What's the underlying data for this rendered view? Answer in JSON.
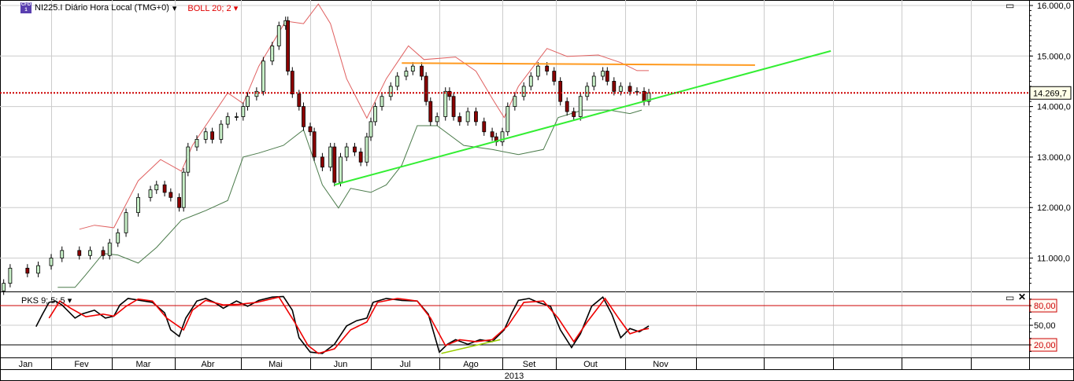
{
  "header": {
    "symbol_icon": "cfd-icon",
    "symbol_label": "NI225.I Diário Hora Local (TMG+0)",
    "indicator_label": "BOLL 20; 2",
    "stoch_label": "PKS 9; 5; 5"
  },
  "colors": {
    "up": "#c8f0c8",
    "down": "#8b0000",
    "boll_upper": "#e06060",
    "boll_lower": "#4a7a4a",
    "trend_support": "#33ee33",
    "trend_resistance": "#ff9a1f",
    "last_price": "#cc0000",
    "stoch_k": "#000000",
    "stoch_d": "#ee0000"
  },
  "chart_data": [
    {
      "type": "candlestick",
      "year": "2013",
      "x_ticks": [
        "Jan",
        "Fev",
        "Mar",
        "Abr",
        "Mai",
        "Jun",
        "Jul",
        "Ago",
        "Set",
        "Out",
        "Nov",
        "",
        "",
        "",
        "",
        ""
      ],
      "y_ticks": [
        "16.000,0",
        "15.000,0",
        "14.000,0",
        "13.000,0",
        "12.000,0",
        "11.000,0"
      ],
      "y_tick_values": [
        16000,
        15000,
        14000,
        13000,
        12000,
        11000
      ],
      "ylim": [
        10400,
        16100
      ],
      "grid": true,
      "last_price": 14269.7,
      "last_price_label": "14.269,7",
      "close": [
        [
          "2013-01-10",
          10500
        ],
        [
          "2013-01-13",
          10800
        ],
        [
          "2013-01-21",
          10700
        ],
        [
          "2013-01-26",
          10850
        ],
        [
          "2013-02-01",
          11000
        ],
        [
          "2013-02-06",
          11150
        ],
        [
          "2013-02-14",
          11050
        ],
        [
          "2013-02-19",
          11150
        ],
        [
          "2013-02-25",
          11050
        ],
        [
          "2013-02-28",
          11300
        ],
        [
          "2013-03-04",
          11500
        ],
        [
          "2013-03-08",
          11900
        ],
        [
          "2013-03-14",
          12200
        ],
        [
          "2013-03-20",
          12350
        ],
        [
          "2013-03-23",
          12450
        ],
        [
          "2013-03-27",
          12300
        ],
        [
          "2013-03-30",
          12200
        ],
        [
          "2013-04-03",
          12000
        ],
        [
          "2013-04-05",
          12700
        ],
        [
          "2013-04-07",
          13200
        ],
        [
          "2013-04-11",
          13350
        ],
        [
          "2013-04-15",
          13500
        ],
        [
          "2013-04-18",
          13350
        ],
        [
          "2013-04-22",
          13650
        ],
        [
          "2013-04-25",
          13800
        ],
        [
          "2013-04-29",
          13800
        ],
        [
          "2013-05-02",
          14000
        ],
        [
          "2013-05-04",
          14200
        ],
        [
          "2013-05-08",
          14300
        ],
        [
          "2013-05-11",
          14900
        ],
        [
          "2013-05-15",
          15200
        ],
        [
          "2013-05-18",
          15600
        ],
        [
          "2013-05-21",
          15700
        ],
        [
          "2013-05-22",
          14700
        ],
        [
          "2013-05-24",
          14250
        ],
        [
          "2013-05-27",
          14000
        ],
        [
          "2013-05-29",
          13600
        ],
        [
          "2013-06-01",
          13500
        ],
        [
          "2013-06-03",
          13000
        ],
        [
          "2013-06-07",
          12800
        ],
        [
          "2013-06-11",
          13200
        ],
        [
          "2013-06-13",
          12500
        ],
        [
          "2013-06-16",
          13000
        ],
        [
          "2013-06-19",
          13200
        ],
        [
          "2013-06-23",
          13100
        ],
        [
          "2013-06-26",
          12900
        ],
        [
          "2013-06-29",
          13400
        ],
        [
          "2013-07-01",
          13700
        ],
        [
          "2013-07-03",
          14000
        ],
        [
          "2013-07-06",
          14200
        ],
        [
          "2013-07-10",
          14400
        ],
        [
          "2013-07-13",
          14600
        ],
        [
          "2013-07-17",
          14700
        ],
        [
          "2013-07-20",
          14800
        ],
        [
          "2013-07-24",
          14600
        ],
        [
          "2013-07-26",
          14100
        ],
        [
          "2013-07-28",
          13700
        ],
        [
          "2013-07-31",
          13800
        ],
        [
          "2013-08-04",
          14300
        ],
        [
          "2013-08-06",
          14200
        ],
        [
          "2013-08-08",
          13800
        ],
        [
          "2013-08-11",
          13700
        ],
        [
          "2013-08-15",
          13900
        ],
        [
          "2013-08-19",
          13700
        ],
        [
          "2013-08-23",
          13500
        ],
        [
          "2013-08-27",
          13400
        ],
        [
          "2013-08-29",
          13300
        ],
        [
          "2013-09-01",
          13500
        ],
        [
          "2013-09-04",
          14000
        ],
        [
          "2013-09-08",
          14200
        ],
        [
          "2013-09-13",
          14400
        ],
        [
          "2013-09-17",
          14600
        ],
        [
          "2013-09-21",
          14800
        ],
        [
          "2013-09-26",
          14700
        ],
        [
          "2013-09-30",
          14500
        ],
        [
          "2013-10-03",
          14100
        ],
        [
          "2013-10-06",
          13900
        ],
        [
          "2013-10-09",
          13800
        ],
        [
          "2013-10-12",
          14200
        ],
        [
          "2013-10-15",
          14400
        ],
        [
          "2013-10-18",
          14600
        ],
        [
          "2013-10-22",
          14700
        ],
        [
          "2013-10-24",
          14500
        ],
        [
          "2013-10-27",
          14300
        ],
        [
          "2013-10-30",
          14400
        ],
        [
          "2013-11-03",
          14300
        ],
        [
          "2013-11-06",
          14300
        ],
        [
          "2013-11-09",
          14100
        ],
        [
          "2013-11-11",
          14269.7
        ]
      ],
      "bollinger_upper": [
        [
          "2013-02-14",
          11570
        ],
        [
          "2013-02-21",
          11650
        ],
        [
          "2013-03-02",
          11600
        ],
        [
          "2013-03-14",
          12530
        ],
        [
          "2013-03-25",
          12950
        ],
        [
          "2013-04-04",
          12720
        ],
        [
          "2013-04-09",
          13230
        ],
        [
          "2013-04-25",
          14270
        ],
        [
          "2013-05-02",
          14060
        ],
        [
          "2013-05-09",
          14800
        ],
        [
          "2013-05-21",
          15690
        ],
        [
          "2013-05-29",
          15640
        ],
        [
          "2013-06-05",
          16030
        ],
        [
          "2013-06-11",
          15640
        ],
        [
          "2013-06-19",
          14550
        ],
        [
          "2013-06-29",
          13770
        ],
        [
          "2013-07-08",
          14550
        ],
        [
          "2013-07-18",
          15200
        ],
        [
          "2013-07-25",
          14930
        ],
        [
          "2013-08-09",
          14980
        ],
        [
          "2013-08-19",
          14700
        ],
        [
          "2013-08-27",
          14160
        ],
        [
          "2013-09-02",
          13780
        ],
        [
          "2013-09-10",
          14400
        ],
        [
          "2013-09-26",
          15150
        ],
        [
          "2013-10-06",
          14990
        ],
        [
          "2013-10-20",
          15020
        ],
        [
          "2013-10-30",
          14870
        ],
        [
          "2013-11-06",
          14710
        ],
        [
          "2013-11-11",
          14710
        ]
      ],
      "bollinger_lower": [
        [
          "2013-02-04",
          10420
        ],
        [
          "2013-02-12",
          10420
        ],
        [
          "2013-02-17",
          10670
        ],
        [
          "2013-02-25",
          11090
        ],
        [
          "2013-03-04",
          11060
        ],
        [
          "2013-03-14",
          10900
        ],
        [
          "2013-03-23",
          11210
        ],
        [
          "2013-04-04",
          11750
        ],
        [
          "2013-04-15",
          11940
        ],
        [
          "2013-04-25",
          12140
        ],
        [
          "2013-05-02",
          13000
        ],
        [
          "2013-05-09",
          13080
        ],
        [
          "2013-05-20",
          13230
        ],
        [
          "2013-05-29",
          13540
        ],
        [
          "2013-06-03",
          12920
        ],
        [
          "2013-06-07",
          12450
        ],
        [
          "2013-06-15",
          11990
        ],
        [
          "2013-06-21",
          12380
        ],
        [
          "2013-07-01",
          12300
        ],
        [
          "2013-07-08",
          12450
        ],
        [
          "2013-07-15",
          12840
        ],
        [
          "2013-07-22",
          13620
        ],
        [
          "2013-07-31",
          13620
        ],
        [
          "2013-08-13",
          13230
        ],
        [
          "2013-08-27",
          13150
        ],
        [
          "2013-09-10",
          13050
        ],
        [
          "2013-09-24",
          13150
        ],
        [
          "2013-10-02",
          13780
        ],
        [
          "2013-10-13",
          13930
        ],
        [
          "2013-10-25",
          13930
        ],
        [
          "2013-11-03",
          13860
        ],
        [
          "2013-11-08",
          13930
        ]
      ],
      "trendlines": [
        {
          "role": "support",
          "from": [
            "2013-06-13",
            12450
          ],
          "to": [
            "2014-01-31",
            15100
          ]
        },
        {
          "role": "resistance",
          "from": [
            "2013-07-15",
            14860
          ],
          "to": [
            "2013-12-28",
            14820
          ]
        }
      ]
    },
    {
      "type": "line",
      "title": "PKS 9; 5; 5",
      "ylim": [
        0,
        100
      ],
      "y_ticks": [
        "80,00",
        "50,00",
        "20,00"
      ],
      "y_tick_values": [
        80,
        50,
        20
      ],
      "series": [
        {
          "role": "%K",
          "values": [
            [
              "2013-01-25",
              48
            ],
            [
              "2013-01-28",
              67
            ],
            [
              "2013-01-31",
              85
            ],
            [
              "2013-02-03",
              87
            ],
            [
              "2013-02-06",
              81
            ],
            [
              "2013-02-12",
              61
            ],
            [
              "2013-02-15",
              67
            ],
            [
              "2013-02-21",
              73
            ],
            [
              "2013-02-26",
              61
            ],
            [
              "2013-03-02",
              64
            ],
            [
              "2013-03-05",
              81
            ],
            [
              "2013-03-09",
              91
            ],
            [
              "2013-03-15",
              88
            ],
            [
              "2013-03-21",
              85
            ],
            [
              "2013-03-27",
              69
            ],
            [
              "2013-03-30",
              43
            ],
            [
              "2013-04-03",
              33
            ],
            [
              "2013-04-06",
              61
            ],
            [
              "2013-04-11",
              87
            ],
            [
              "2013-04-15",
              91
            ],
            [
              "2013-04-19",
              85
            ],
            [
              "2013-04-23",
              76
            ],
            [
              "2013-04-29",
              87
            ],
            [
              "2013-05-04",
              79
            ],
            [
              "2013-05-09",
              88
            ],
            [
              "2013-05-15",
              93
            ],
            [
              "2013-05-20",
              94
            ],
            [
              "2013-05-24",
              73
            ],
            [
              "2013-05-27",
              31
            ],
            [
              "2013-06-01",
              9
            ],
            [
              "2013-06-07",
              7
            ],
            [
              "2013-06-13",
              21
            ],
            [
              "2013-06-19",
              49
            ],
            [
              "2013-06-24",
              57
            ],
            [
              "2013-06-29",
              61
            ],
            [
              "2013-07-02",
              85
            ],
            [
              "2013-07-08",
              91
            ],
            [
              "2013-07-15",
              88
            ],
            [
              "2013-07-22",
              87
            ],
            [
              "2013-07-27",
              67
            ],
            [
              "2013-08-01",
              9
            ],
            [
              "2013-08-05",
              21
            ],
            [
              "2013-08-09",
              28
            ],
            [
              "2013-08-15",
              21
            ],
            [
              "2013-08-21",
              28
            ],
            [
              "2013-08-27",
              25
            ],
            [
              "2013-09-02",
              43
            ],
            [
              "2013-09-06",
              67
            ],
            [
              "2013-09-10",
              88
            ],
            [
              "2013-09-16",
              91
            ],
            [
              "2013-09-21",
              85
            ],
            [
              "2013-09-28",
              79
            ],
            [
              "2013-10-03",
              43
            ],
            [
              "2013-10-08",
              16
            ],
            [
              "2013-10-12",
              37
            ],
            [
              "2013-10-17",
              79
            ],
            [
              "2013-10-22",
              93
            ],
            [
              "2013-10-26",
              67
            ],
            [
              "2013-10-30",
              31
            ],
            [
              "2013-11-03",
              45
            ],
            [
              "2013-11-07",
              40
            ],
            [
              "2013-11-11",
              49
            ]
          ]
        },
        {
          "role": "%D",
          "values": [
            [
              "2013-01-31",
              61
            ],
            [
              "2013-02-05",
              87
            ],
            [
              "2013-02-10",
              76
            ],
            [
              "2013-02-17",
              63
            ],
            [
              "2013-02-25",
              67
            ],
            [
              "2013-03-02",
              64
            ],
            [
              "2013-03-08",
              79
            ],
            [
              "2013-03-14",
              90
            ],
            [
              "2013-03-21",
              87
            ],
            [
              "2013-03-28",
              61
            ],
            [
              "2013-04-05",
              43
            ],
            [
              "2013-04-09",
              73
            ],
            [
              "2013-04-15",
              88
            ],
            [
              "2013-04-23",
              81
            ],
            [
              "2013-04-30",
              82
            ],
            [
              "2013-05-08",
              85
            ],
            [
              "2013-05-18",
              93
            ],
            [
              "2013-05-25",
              55
            ],
            [
              "2013-05-31",
              19
            ],
            [
              "2013-06-05",
              7
            ],
            [
              "2013-06-13",
              14
            ],
            [
              "2013-06-21",
              43
            ],
            [
              "2013-06-29",
              55
            ],
            [
              "2013-07-04",
              85
            ],
            [
              "2013-07-13",
              91
            ],
            [
              "2013-07-22",
              87
            ],
            [
              "2013-07-28",
              61
            ],
            [
              "2013-08-04",
              19
            ],
            [
              "2013-08-11",
              28
            ],
            [
              "2013-08-19",
              25
            ],
            [
              "2013-08-27",
              28
            ],
            [
              "2013-09-04",
              49
            ],
            [
              "2013-09-13",
              85
            ],
            [
              "2013-09-24",
              87
            ],
            [
              "2013-10-02",
              61
            ],
            [
              "2013-10-09",
              25
            ],
            [
              "2013-10-15",
              55
            ],
            [
              "2013-10-23",
              91
            ],
            [
              "2013-10-29",
              61
            ],
            [
              "2013-11-03",
              37
            ],
            [
              "2013-11-08",
              43
            ],
            [
              "2013-11-11",
              45
            ]
          ]
        }
      ],
      "trendline": {
        "from": [
          "2013-08-02",
          7
        ],
        "to": [
          "2013-08-31",
          28
        ]
      }
    }
  ]
}
